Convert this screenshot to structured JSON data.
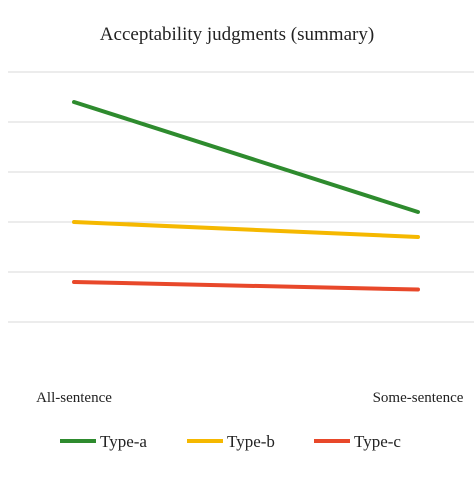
{
  "chart_data": {
    "type": "line",
    "title": "Acceptability judgments (summary)",
    "categories": [
      "All-sentence",
      "Some-sentence"
    ],
    "ylim": [
      0,
      6
    ],
    "grid": true,
    "legend_position": "bottom",
    "series": [
      {
        "name": "Type-a",
        "color": "#2e8b2e",
        "values": [
          5.4,
          3.2
        ]
      },
      {
        "name": "Type-b",
        "color": "#f5b800",
        "values": [
          3.0,
          2.7
        ]
      },
      {
        "name": "Type-c",
        "color": "#e8482a",
        "values": [
          1.8,
          1.65
        ]
      }
    ]
  }
}
